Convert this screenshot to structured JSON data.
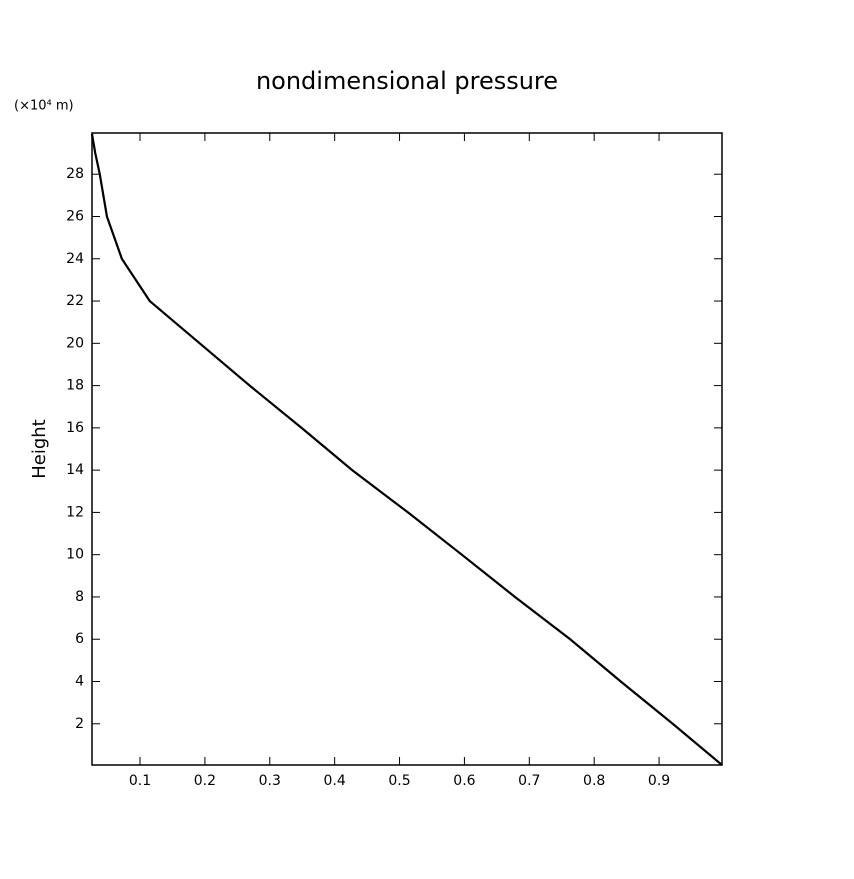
{
  "chart_data": {
    "type": "line",
    "title": "nondimensional pressure",
    "y_label": "Height",
    "y_unit": "(×10⁴ m)",
    "x": [
      0.026,
      0.031,
      0.038,
      0.049,
      0.072,
      0.115,
      0.192,
      0.269,
      0.349,
      0.427,
      0.513,
      0.596,
      0.678,
      0.763,
      0.841,
      0.921,
      0.997
    ],
    "values": [
      29.9,
      29.0,
      28.0,
      26.0,
      24.0,
      22.0,
      20.0,
      18.0,
      16.0,
      14.0,
      12.0,
      10.0,
      8.0,
      6.0,
      4.0,
      2.0,
      0.05
    ],
    "color": "#000000",
    "xlim": [
      0.026,
      0.997
    ],
    "ylim": [
      0.05,
      29.95
    ],
    "xticks": [
      0.1,
      0.2,
      0.3,
      0.4,
      0.5,
      0.6,
      0.7,
      0.8,
      0.9
    ],
    "yticks": [
      2,
      4,
      6,
      8,
      10,
      12,
      14,
      16,
      18,
      20,
      22,
      24,
      26,
      28
    ]
  }
}
